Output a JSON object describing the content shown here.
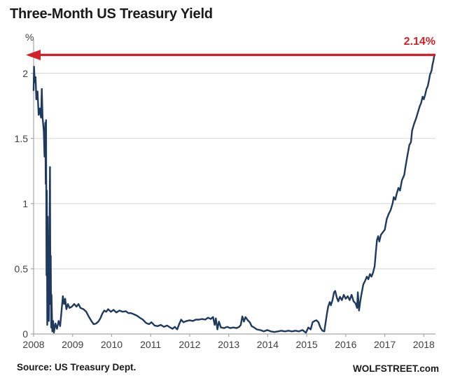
{
  "header": {
    "title": "Three-Month US Treasury Yield"
  },
  "footer": {
    "source_note": "Source: US Treasury Dept.",
    "watermark": "WOLFSTREET.com"
  },
  "colors": {
    "line": "#1f3a5f",
    "arrow": "#cf2329",
    "grid": "#d9d9d9",
    "axis": "#a6a6a6",
    "tick_text": "#404040",
    "title_text": "#1a1a1a",
    "background": "#ffffff"
  },
  "chart_data": {
    "type": "line",
    "title": "Three-Month US Treasury Yield",
    "xlabel": "",
    "ylabel": "%",
    "grid": "horizontal",
    "legend_position": "none",
    "xlim": [
      2008.5,
      2018.8
    ],
    "ylim": [
      0,
      2.25
    ],
    "y_ticks": [
      {
        "label": "0",
        "value": 0
      },
      {
        "label": "0.5",
        "value": 0.5
      },
      {
        "label": "1",
        "value": 1
      },
      {
        "label": "1.5",
        "value": 1.5
      },
      {
        "label": "2",
        "value": 2
      }
    ],
    "x_ticks": [
      {
        "label": "2008",
        "value": 2008.5
      },
      {
        "label": "2009",
        "value": 2009.5
      },
      {
        "label": "2010",
        "value": 2010.5
      },
      {
        "label": "2011",
        "value": 2011.5
      },
      {
        "label": "2012",
        "value": 2012.5
      },
      {
        "label": "2013",
        "value": 2013.5
      },
      {
        "label": "2014",
        "value": 2014.5
      },
      {
        "label": "2015",
        "value": 2015.5
      },
      {
        "label": "2016",
        "value": 2016.5
      },
      {
        "label": "2017",
        "value": 2017.5
      },
      {
        "label": "2018",
        "value": 2018.5
      }
    ],
    "annotation": {
      "label": "2.14%",
      "value": 2.14,
      "type": "horizontal-arrow-pointing-left"
    },
    "series": [
      {
        "name": "3-month US Treasury yield (%)",
        "points": [
          [
            2008.5,
            1.87
          ],
          [
            2008.51,
            2.05
          ],
          [
            2008.53,
            1.93
          ],
          [
            2008.55,
            1.97
          ],
          [
            2008.57,
            1.8
          ],
          [
            2008.6,
            1.86
          ],
          [
            2008.63,
            1.68
          ],
          [
            2008.66,
            1.73
          ],
          [
            2008.69,
            1.66
          ],
          [
            2008.71,
            1.88
          ],
          [
            2008.73,
            1.66
          ],
          [
            2008.76,
            1.56
          ],
          [
            2008.78,
            1.36
          ],
          [
            2008.79,
            1.5
          ],
          [
            2008.8,
            1.62
          ],
          [
            2008.81,
            1.15
          ],
          [
            2008.82,
            1.64
          ],
          [
            2008.83,
            0.45
          ],
          [
            2008.84,
            1.1
          ],
          [
            2008.85,
            0.07
          ],
          [
            2008.86,
            0.9
          ],
          [
            2008.87,
            0.2
          ],
          [
            2008.88,
            0.75
          ],
          [
            2008.89,
            0.1
          ],
          [
            2008.92,
            1.28
          ],
          [
            2008.93,
            0.23
          ],
          [
            2008.94,
            0.6
          ],
          [
            2008.95,
            0.05
          ],
          [
            2008.96,
            0.3
          ],
          [
            2008.98,
            0.02
          ],
          [
            2009.0,
            0.1
          ],
          [
            2009.02,
            0.01
          ],
          [
            2009.06,
            0.08
          ],
          [
            2009.1,
            0.04
          ],
          [
            2009.14,
            0.1
          ],
          [
            2009.18,
            0.06
          ],
          [
            2009.21,
            0.16
          ],
          [
            2009.25,
            0.29
          ],
          [
            2009.28,
            0.23
          ],
          [
            2009.31,
            0.27
          ],
          [
            2009.34,
            0.19
          ],
          [
            2009.38,
            0.23
          ],
          [
            2009.42,
            0.2
          ],
          [
            2009.48,
            0.21
          ],
          [
            2009.54,
            0.23
          ],
          [
            2009.6,
            0.21
          ],
          [
            2009.65,
            0.23
          ],
          [
            2009.7,
            0.2
          ],
          [
            2009.78,
            0.19
          ],
          [
            2009.85,
            0.17
          ],
          [
            2009.92,
            0.13
          ],
          [
            2009.98,
            0.1
          ],
          [
            2010.04,
            0.075
          ],
          [
            2010.1,
            0.08
          ],
          [
            2010.16,
            0.095
          ],
          [
            2010.21,
            0.12
          ],
          [
            2010.26,
            0.155
          ],
          [
            2010.31,
            0.18
          ],
          [
            2010.36,
            0.17
          ],
          [
            2010.41,
            0.19
          ],
          [
            2010.48,
            0.17
          ],
          [
            2010.55,
            0.185
          ],
          [
            2010.62,
            0.165
          ],
          [
            2010.7,
            0.18
          ],
          [
            2010.78,
            0.17
          ],
          [
            2010.86,
            0.175
          ],
          [
            2010.93,
            0.16
          ],
          [
            2011.0,
            0.16
          ],
          [
            2011.08,
            0.15
          ],
          [
            2011.15,
            0.14
          ],
          [
            2011.22,
            0.125
          ],
          [
            2011.3,
            0.11
          ],
          [
            2011.38,
            0.085
          ],
          [
            2011.46,
            0.075
          ],
          [
            2011.52,
            0.09
          ],
          [
            2011.6,
            0.065
          ],
          [
            2011.68,
            0.06
          ],
          [
            2011.76,
            0.07
          ],
          [
            2011.84,
            0.055
          ],
          [
            2011.92,
            0.065
          ],
          [
            2012.0,
            0.05
          ],
          [
            2012.06,
            0.04
          ],
          [
            2012.12,
            0.055
          ],
          [
            2012.18,
            0.035
          ],
          [
            2012.23,
            0.075
          ],
          [
            2012.28,
            0.11
          ],
          [
            2012.34,
            0.09
          ],
          [
            2012.42,
            0.1
          ],
          [
            2012.5,
            0.105
          ],
          [
            2012.58,
            0.1
          ],
          [
            2012.66,
            0.11
          ],
          [
            2012.74,
            0.11
          ],
          [
            2012.82,
            0.115
          ],
          [
            2012.9,
            0.11
          ],
          [
            2012.97,
            0.125
          ],
          [
            2013.04,
            0.115
          ],
          [
            2013.1,
            0.13
          ],
          [
            2013.14,
            0.07
          ],
          [
            2013.17,
            0.12
          ],
          [
            2013.21,
            0.035
          ],
          [
            2013.25,
            0.095
          ],
          [
            2013.3,
            0.05
          ],
          [
            2013.38,
            0.045
          ],
          [
            2013.46,
            0.055
          ],
          [
            2013.54,
            0.045
          ],
          [
            2013.62,
            0.05
          ],
          [
            2013.7,
            0.045
          ],
          [
            2013.77,
            0.055
          ],
          [
            2013.81,
            0.07
          ],
          [
            2013.85,
            0.135
          ],
          [
            2013.89,
            0.095
          ],
          [
            2013.93,
            0.13
          ],
          [
            2013.99,
            0.105
          ],
          [
            2014.04,
            0.09
          ],
          [
            2014.09,
            0.06
          ],
          [
            2014.15,
            0.05
          ],
          [
            2014.22,
            0.035
          ],
          [
            2014.31,
            0.03
          ],
          [
            2014.4,
            0.02
          ],
          [
            2014.49,
            0.03
          ],
          [
            2014.58,
            0.02
          ],
          [
            2014.67,
            0.015
          ],
          [
            2014.76,
            0.02
          ],
          [
            2014.85,
            0.025
          ],
          [
            2014.94,
            0.02
          ],
          [
            2015.03,
            0.025
          ],
          [
            2015.12,
            0.02
          ],
          [
            2015.21,
            0.025
          ],
          [
            2015.3,
            0.02
          ],
          [
            2015.39,
            0.03
          ],
          [
            2015.48,
            0.01
          ],
          [
            2015.54,
            0.05
          ],
          [
            2015.6,
            0.035
          ],
          [
            2015.65,
            0.09
          ],
          [
            2015.7,
            0.1
          ],
          [
            2015.75,
            0.105
          ],
          [
            2015.8,
            0.09
          ],
          [
            2015.85,
            0.05
          ],
          [
            2015.9,
            0.026
          ],
          [
            2015.95,
            0.02
          ],
          [
            2015.99,
            0.1
          ],
          [
            2016.02,
            0.16
          ],
          [
            2016.05,
            0.21
          ],
          [
            2016.09,
            0.245
          ],
          [
            2016.12,
            0.22
          ],
          [
            2016.16,
            0.26
          ],
          [
            2016.2,
            0.32
          ],
          [
            2016.23,
            0.33
          ],
          [
            2016.27,
            0.28
          ],
          [
            2016.31,
            0.25
          ],
          [
            2016.35,
            0.285
          ],
          [
            2016.4,
            0.26
          ],
          [
            2016.45,
            0.3
          ],
          [
            2016.5,
            0.27
          ],
          [
            2016.55,
            0.29
          ],
          [
            2016.6,
            0.26
          ],
          [
            2016.65,
            0.3
          ],
          [
            2016.7,
            0.25
          ],
          [
            2016.75,
            0.235
          ],
          [
            2016.79,
            0.2
          ],
          [
            2016.81,
            0.32
          ],
          [
            2016.84,
            0.18
          ],
          [
            2016.87,
            0.245
          ],
          [
            2016.9,
            0.3
          ],
          [
            2016.95,
            0.38
          ],
          [
            2017.0,
            0.41
          ],
          [
            2017.04,
            0.44
          ],
          [
            2017.08,
            0.42
          ],
          [
            2017.12,
            0.46
          ],
          [
            2017.16,
            0.44
          ],
          [
            2017.2,
            0.47
          ],
          [
            2017.24,
            0.52
          ],
          [
            2017.27,
            0.62
          ],
          [
            2017.3,
            0.72
          ],
          [
            2017.33,
            0.75
          ],
          [
            2017.36,
            0.71
          ],
          [
            2017.4,
            0.76
          ],
          [
            2017.45,
            0.78
          ],
          [
            2017.5,
            0.8
          ],
          [
            2017.55,
            0.88
          ],
          [
            2017.6,
            0.92
          ],
          [
            2017.65,
            0.95
          ],
          [
            2017.7,
            1.0
          ],
          [
            2017.73,
            1.05
          ],
          [
            2017.77,
            1.03
          ],
          [
            2017.81,
            1.08
          ],
          [
            2017.85,
            1.12
          ],
          [
            2017.89,
            1.1
          ],
          [
            2017.94,
            1.18
          ],
          [
            2018.0,
            1.22
          ],
          [
            2018.03,
            1.28
          ],
          [
            2018.07,
            1.35
          ],
          [
            2018.1,
            1.4
          ],
          [
            2018.13,
            1.45
          ],
          [
            2018.17,
            1.47
          ],
          [
            2018.2,
            1.56
          ],
          [
            2018.25,
            1.61
          ],
          [
            2018.3,
            1.65
          ],
          [
            2018.35,
            1.7
          ],
          [
            2018.4,
            1.75
          ],
          [
            2018.43,
            1.77
          ],
          [
            2018.47,
            1.82
          ],
          [
            2018.5,
            1.8
          ],
          [
            2018.53,
            1.83
          ],
          [
            2018.57,
            1.88
          ],
          [
            2018.6,
            1.9
          ],
          [
            2018.63,
            1.94
          ],
          [
            2018.66,
            1.99
          ],
          [
            2018.7,
            2.02
          ],
          [
            2018.72,
            2.06
          ],
          [
            2018.75,
            2.1
          ],
          [
            2018.77,
            2.14
          ]
        ]
      }
    ]
  }
}
